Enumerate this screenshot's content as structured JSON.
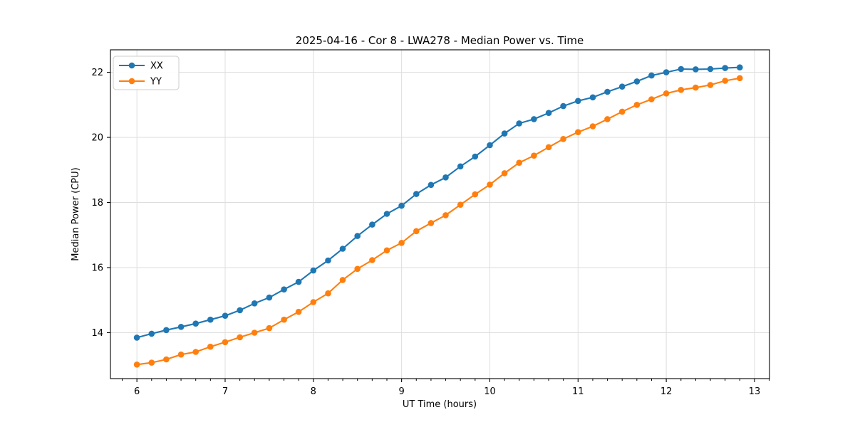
{
  "figure": {
    "background": "#ffffff"
  },
  "chart_data": {
    "type": "line",
    "title": "2025-04-16 - Cor 8 - LWA278 - Median Power vs. Time",
    "xlabel": "UT Time (hours)",
    "ylabel": "Median Power (CPU)",
    "x": [
      6.0,
      6.167,
      6.333,
      6.5,
      6.667,
      6.833,
      7.0,
      7.167,
      7.333,
      7.5,
      7.667,
      7.833,
      8.0,
      8.167,
      8.333,
      8.5,
      8.667,
      8.833,
      9.0,
      9.167,
      9.333,
      9.5,
      9.667,
      9.833,
      10.0,
      10.167,
      10.333,
      10.5,
      10.667,
      10.833,
      11.0,
      11.167,
      11.333,
      11.5,
      11.667,
      11.833,
      12.0,
      12.167,
      12.333,
      12.5,
      12.667,
      12.833
    ],
    "series": [
      {
        "name": "XX",
        "color": "#1f77b4",
        "marker": "circle",
        "values": [
          13.85,
          13.97,
          14.08,
          14.18,
          14.28,
          14.4,
          14.52,
          14.69,
          14.9,
          15.08,
          15.33,
          15.56,
          15.91,
          16.22,
          16.58,
          16.97,
          17.32,
          17.65,
          17.9,
          18.26,
          18.54,
          18.77,
          19.11,
          19.41,
          19.76,
          20.12,
          20.43,
          20.56,
          20.75,
          20.96,
          21.12,
          21.23,
          21.4,
          21.56,
          21.72,
          21.9,
          22.0,
          22.1,
          22.09,
          22.1,
          22.13,
          22.15
        ]
      },
      {
        "name": "YY",
        "color": "#ff7f0e",
        "marker": "circle",
        "values": [
          13.02,
          13.08,
          13.18,
          13.33,
          13.41,
          13.57,
          13.71,
          13.86,
          14.0,
          14.14,
          14.4,
          14.64,
          14.94,
          15.21,
          15.62,
          15.96,
          16.23,
          16.53,
          16.76,
          17.12,
          17.37,
          17.61,
          17.93,
          18.25,
          18.55,
          18.9,
          19.22,
          19.44,
          19.7,
          19.95,
          20.16,
          20.34,
          20.56,
          20.79,
          21.0,
          21.17,
          21.35,
          21.46,
          21.53,
          21.61,
          21.74,
          21.82
        ]
      }
    ],
    "xlim": [
      5.7,
      13.17
    ],
    "ylim": [
      12.59,
      22.69
    ],
    "x_ticks": [
      6,
      7,
      8,
      9,
      10,
      11,
      12,
      13
    ],
    "y_ticks": [
      14,
      16,
      18,
      20,
      22
    ],
    "x_minor_subdivisions": 6,
    "grid": true,
    "legend": {
      "position": "upper-left",
      "entries": [
        "XX",
        "YY"
      ]
    },
    "colors": {
      "grid": "#dedede",
      "spine": "#000000",
      "tick": "#000000",
      "legend_border": "#cccccc",
      "legend_bg": "#ffffff"
    }
  }
}
